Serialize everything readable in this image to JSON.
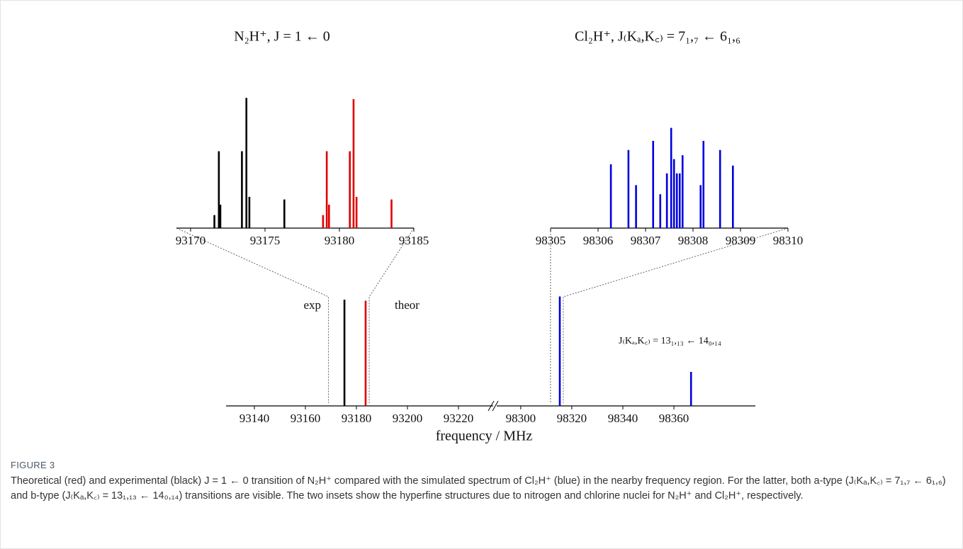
{
  "chart_data": [
    {
      "type": "stick",
      "xlabel": "frequency / MHz",
      "xlim": [
        93128.9,
        93233.6
      ],
      "xticks": [
        93140,
        93160,
        93180,
        93200,
        93220
      ],
      "x2lim": [
        98290.6,
        98391.9
      ],
      "x2ticks": [
        98300,
        98320,
        98340,
        98360
      ],
      "ylim": [
        0,
        1.1
      ],
      "series": [
        {
          "name": "exp",
          "color": "#000000",
          "x": [
            93175.3
          ],
          "values": [
            1.0
          ]
        },
        {
          "name": "theor",
          "color": "#e00000",
          "x": [
            93183.6
          ],
          "values": [
            0.99
          ]
        },
        {
          "color": "#0000dd",
          "axis": "x2",
          "x": [
            98315.3,
            98366.7
          ],
          "values": [
            1.03,
            0.32
          ]
        }
      ],
      "annotations": [
        "J₍Kₐ,K꜀₎ = 13₁,₁₃ ← 14₀,₁₄"
      ]
    },
    {
      "type": "stick",
      "title": "N₂H⁺, J = 1 ← 0",
      "xlim": [
        93169.05,
        93185
      ],
      "xticks": [
        93170,
        93175,
        93180,
        93185
      ],
      "ylim": [
        0,
        1.05
      ],
      "series": [
        {
          "color": "#000000",
          "x": [
            93171.6,
            93171.9,
            93172.0,
            93173.45,
            93173.75,
            93173.95,
            93176.3
          ],
          "values": [
            0.1,
            0.59,
            0.18,
            0.59,
            1.0,
            0.24,
            0.22
          ]
        },
        {
          "color": "#e00000",
          "x": [
            93178.9,
            93179.15,
            93179.3,
            93180.7,
            93180.95,
            93181.15,
            93183.5
          ],
          "values": [
            0.1,
            0.59,
            0.18,
            0.59,
            0.99,
            0.24,
            0.22
          ]
        }
      ]
    },
    {
      "type": "stick",
      "title": "Cl₂H⁺, J₍Kₐ,K꜀₎ = 7₁,₇ ← 6₁,₆",
      "xlim": [
        98305,
        98310
      ],
      "xticks": [
        98305,
        98306,
        98307,
        98308,
        98309,
        98310
      ],
      "ylim": [
        0,
        1.05
      ],
      "series": [
        {
          "color": "#0000dd",
          "x": [
            98306.27,
            98306.64,
            98306.8,
            98307.16,
            98307.31,
            98307.45,
            98307.54,
            98307.6,
            98307.66,
            98307.72,
            98307.78,
            98308.16,
            98308.22,
            98308.57,
            98308.84
          ],
          "values": [
            0.49,
            0.6,
            0.33,
            0.67,
            0.26,
            0.42,
            0.77,
            0.53,
            0.42,
            0.42,
            0.56,
            0.33,
            0.67,
            0.6,
            0.48
          ]
        }
      ]
    }
  ],
  "caption": {
    "label": "FIGURE 3",
    "text": "Theoretical (red) and experimental (black) J = 1 ← 0 transition of N₂H⁺ compared with the simulated spectrum of Cl₂H⁺ (blue) in the nearby frequency region. For the latter, both a-type (J₍Kₐ,K꜀₎ = 7₁,₇ ← 6₁,₆) and b-type (J₍Kₐ,K꜀₎ = 13₁,₁₃ ← 14₀,₁₄) transitions are visible. The two insets show the hyperfine structures due to nitrogen and chlorine nuclei for N₂H⁺ and Cl₂H⁺, respectively."
  }
}
